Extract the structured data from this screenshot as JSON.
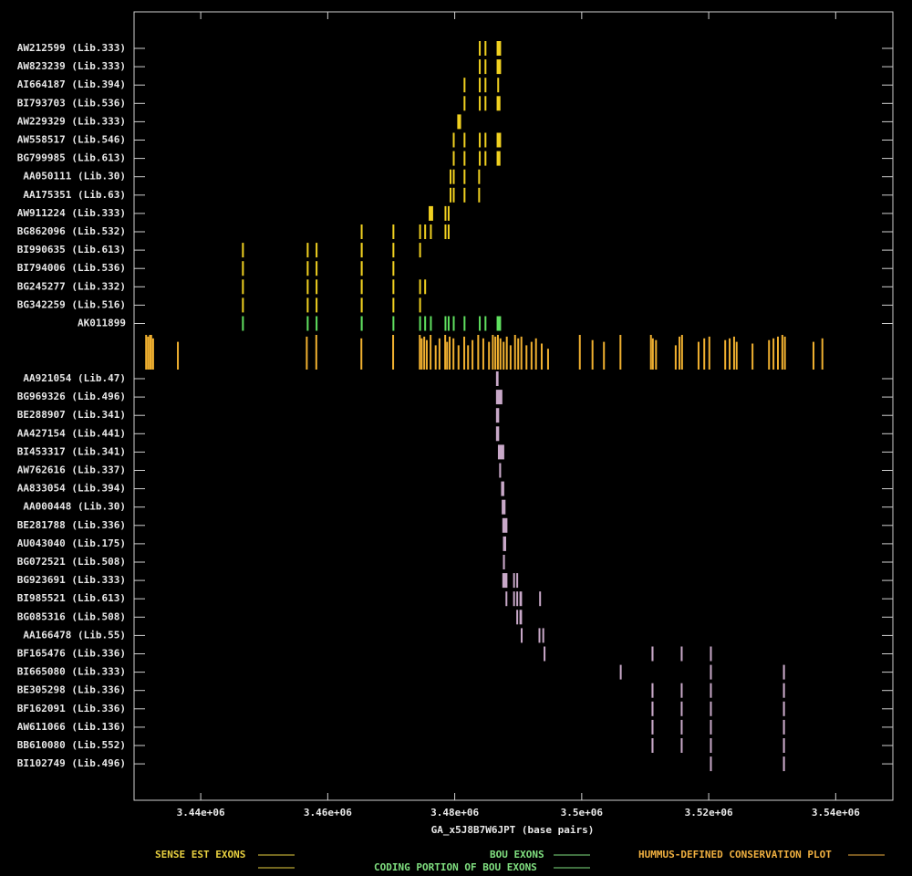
{
  "chart_data": {
    "type": "genome-track",
    "x_label": "GA_x5J8B7W6JPT (base pairs)",
    "xlim": [
      3429500,
      3549000
    ],
    "xticks": [
      {
        "value": 3440000,
        "label": "3.44e+06"
      },
      {
        "value": 3460000,
        "label": "3.46e+06"
      },
      {
        "value": 3480000,
        "label": "3.48e+06"
      },
      {
        "value": 3500000,
        "label": "3.5e+06"
      },
      {
        "value": 3520000,
        "label": "3.52e+06"
      },
      {
        "value": 3540000,
        "label": "3.54e+06"
      }
    ],
    "tracks": [
      {
        "name": "AW212599 (Lib.333)",
        "color": "#f0d020",
        "exons": [
          [
            3483800,
            3484000
          ],
          [
            3484700,
            3484900
          ],
          [
            3486600,
            3487300
          ]
        ]
      },
      {
        "name": "AW823239 (Lib.333)",
        "color": "#f0d020",
        "exons": [
          [
            3483800,
            3484000
          ],
          [
            3484700,
            3484900
          ],
          [
            3486600,
            3487300
          ]
        ]
      },
      {
        "name": "AI664187 (Lib.394)",
        "color": "#f0d020",
        "exons": [
          [
            3481400,
            3481600
          ],
          [
            3483800,
            3484000
          ],
          [
            3484700,
            3484900
          ],
          [
            3486700,
            3486900
          ]
        ]
      },
      {
        "name": "BI793703 (Lib.536)",
        "color": "#f0d020",
        "exons": [
          [
            3481400,
            3481600
          ],
          [
            3483800,
            3484000
          ],
          [
            3484700,
            3484900
          ],
          [
            3486600,
            3487200
          ]
        ]
      },
      {
        "name": "AW229329 (Lib.333)",
        "color": "#f0d020",
        "exons": [
          [
            3480400,
            3481000
          ]
        ]
      },
      {
        "name": "AW558517 (Lib.546)",
        "color": "#f0d020",
        "exons": [
          [
            3479700,
            3479900
          ],
          [
            3481400,
            3481600
          ],
          [
            3483800,
            3484000
          ],
          [
            3484700,
            3484900
          ],
          [
            3486600,
            3487300
          ]
        ]
      },
      {
        "name": "BG799985 (Lib.613)",
        "color": "#f0d020",
        "exons": [
          [
            3479700,
            3479900
          ],
          [
            3481400,
            3481600
          ],
          [
            3483800,
            3484000
          ],
          [
            3484700,
            3484900
          ],
          [
            3486600,
            3487200
          ]
        ]
      },
      {
        "name": "AA050111 (Lib.30)",
        "color": "#f0d020",
        "exons": [
          [
            3479200,
            3479300
          ],
          [
            3479700,
            3479800
          ],
          [
            3481400,
            3481600
          ],
          [
            3483700,
            3483800
          ]
        ]
      },
      {
        "name": "AA175351 (Lib.63)",
        "color": "#f0d020",
        "exons": [
          [
            3479200,
            3479300
          ],
          [
            3479700,
            3479800
          ],
          [
            3481400,
            3481600
          ],
          [
            3483700,
            3483900
          ]
        ]
      },
      {
        "name": "AW911224 (Lib.333)",
        "color": "#f0d020",
        "exons": [
          [
            3475900,
            3476600
          ],
          [
            3478400,
            3478600
          ],
          [
            3478900,
            3479100
          ]
        ]
      },
      {
        "name": "BG862096 (Lib.532)",
        "color": "#f0d020",
        "exons": [
          [
            3465200,
            3465400
          ],
          [
            3470200,
            3470400
          ],
          [
            3474400,
            3474600
          ],
          [
            3475200,
            3475400
          ],
          [
            3476100,
            3476300
          ],
          [
            3478400,
            3478600
          ],
          [
            3478900,
            3479100
          ]
        ]
      },
      {
        "name": "BI990635 (Lib.613)",
        "color": "#f0d020",
        "exons": [
          [
            3446500,
            3446700
          ],
          [
            3456700,
            3456900
          ],
          [
            3458100,
            3458300
          ],
          [
            3465200,
            3465500
          ],
          [
            3470200,
            3470400
          ],
          [
            3474400,
            3474600
          ]
        ]
      },
      {
        "name": "BI794006 (Lib.536)",
        "color": "#f0d020",
        "exons": [
          [
            3446500,
            3446700
          ],
          [
            3456700,
            3456900
          ],
          [
            3458100,
            3458300
          ],
          [
            3465200,
            3465500
          ],
          [
            3470200,
            3470400
          ]
        ]
      },
      {
        "name": "BG245277 (Lib.332)",
        "color": "#f0d020",
        "exons": [
          [
            3446500,
            3446700
          ],
          [
            3456700,
            3456900
          ],
          [
            3458100,
            3458300
          ],
          [
            3465200,
            3465500
          ],
          [
            3470200,
            3470400
          ],
          [
            3474400,
            3474600
          ],
          [
            3475200,
            3475400
          ]
        ]
      },
      {
        "name": "BG342259 (Lib.516)",
        "color": "#f0d020",
        "exons": [
          [
            3446500,
            3446700
          ],
          [
            3456700,
            3456900
          ],
          [
            3458100,
            3458300
          ],
          [
            3465200,
            3465500
          ],
          [
            3470200,
            3470400
          ],
          [
            3474400,
            3474600
          ]
        ]
      },
      {
        "name": "AK011899",
        "color": "#60e060",
        "exons": [
          [
            3446500,
            3446700
          ],
          [
            3456700,
            3456900
          ],
          [
            3458100,
            3458300
          ],
          [
            3465200,
            3465500
          ],
          [
            3470200,
            3470400
          ],
          [
            3474400,
            3474600
          ],
          [
            3475200,
            3475400
          ],
          [
            3476100,
            3476300
          ],
          [
            3478400,
            3478600
          ],
          [
            3478900,
            3479100
          ],
          [
            3479700,
            3479900
          ],
          [
            3481400,
            3481600
          ],
          [
            3483800,
            3484000
          ],
          [
            3484700,
            3484900
          ],
          [
            3486600,
            3487300
          ]
        ]
      },
      {
        "name": "AA921054 (Lib.47)",
        "color": "#c8a8c8",
        "exons": [
          [
            3486500,
            3486900
          ]
        ]
      },
      {
        "name": "BG969326 (Lib.496)",
        "color": "#c8a8c8",
        "exons": [
          [
            3486500,
            3487500
          ]
        ]
      },
      {
        "name": "BE288907 (Lib.341)",
        "color": "#c8a8c8",
        "exons": [
          [
            3486500,
            3487000
          ]
        ]
      },
      {
        "name": "AA427154 (Lib.441)",
        "color": "#c8a8c8",
        "exons": [
          [
            3486500,
            3487000
          ]
        ]
      },
      {
        "name": "BI453317 (Lib.341)",
        "color": "#c8a8c8",
        "exons": [
          [
            3486800,
            3487800
          ]
        ]
      },
      {
        "name": "AW762616 (Lib.337)",
        "color": "#c8a8c8",
        "exons": [
          [
            3487000,
            3487300
          ]
        ]
      },
      {
        "name": "AA833054 (Lib.394)",
        "color": "#c8a8c8",
        "exons": [
          [
            3487300,
            3487800
          ]
        ]
      },
      {
        "name": "AA000448 (Lib.30)",
        "color": "#c8a8c8",
        "exons": [
          [
            3487400,
            3488000
          ]
        ]
      },
      {
        "name": "BE281788 (Lib.336)",
        "color": "#c8a8c8",
        "exons": [
          [
            3487500,
            3488300
          ]
        ]
      },
      {
        "name": "AU043040 (Lib.175)",
        "color": "#c8a8c8",
        "exons": [
          [
            3487600,
            3488100
          ]
        ]
      },
      {
        "name": "BG072521 (Lib.508)",
        "color": "#c8a8c8",
        "exons": [
          [
            3487600,
            3487900
          ]
        ]
      },
      {
        "name": "BG923691 (Lib.333)",
        "color": "#c8a8c8",
        "exons": [
          [
            3487500,
            3488300
          ],
          [
            3489200,
            3489400
          ],
          [
            3489700,
            3489900
          ]
        ]
      },
      {
        "name": "BI985521 (Lib.613)",
        "color": "#c8a8c8",
        "exons": [
          [
            3488000,
            3488200
          ],
          [
            3489200,
            3489400
          ],
          [
            3489700,
            3489900
          ],
          [
            3490200,
            3490600
          ],
          [
            3493300,
            3493500
          ]
        ]
      },
      {
        "name": "BG085316 (Lib.508)",
        "color": "#c8a8c8",
        "exons": [
          [
            3489700,
            3489900
          ],
          [
            3490200,
            3490600
          ]
        ]
      },
      {
        "name": "AA166478 (Lib.55)",
        "color": "#c8a8c8",
        "exons": [
          [
            3490400,
            3490600
          ],
          [
            3493200,
            3493400
          ],
          [
            3493800,
            3494000
          ]
        ]
      },
      {
        "name": "BF165476 (Lib.336)",
        "color": "#c8a8c8",
        "exons": [
          [
            3494000,
            3494200
          ],
          [
            3511000,
            3511300
          ],
          [
            3515600,
            3515800
          ],
          [
            3520200,
            3520400
          ]
        ]
      },
      {
        "name": "BI665080 (Lib.333)",
        "color": "#c8a8c8",
        "exons": [
          [
            3506000,
            3506200
          ],
          [
            3520200,
            3520400
          ],
          [
            3531700,
            3532000
          ]
        ]
      },
      {
        "name": "BE305298 (Lib.336)",
        "color": "#c8a8c8",
        "exons": [
          [
            3511000,
            3511300
          ],
          [
            3515600,
            3515800
          ],
          [
            3520200,
            3520400
          ],
          [
            3531700,
            3532000
          ]
        ]
      },
      {
        "name": "BF162091 (Lib.336)",
        "color": "#c8a8c8",
        "exons": [
          [
            3511000,
            3511300
          ],
          [
            3515600,
            3515800
          ],
          [
            3520200,
            3520400
          ],
          [
            3531700,
            3532000
          ]
        ]
      },
      {
        "name": "AW611066 (Lib.136)",
        "color": "#c8a8c8",
        "exons": [
          [
            3511000,
            3511300
          ],
          [
            3515600,
            3515800
          ],
          [
            3520200,
            3520400
          ],
          [
            3531700,
            3532000
          ]
        ]
      },
      {
        "name": "BB610080 (Lib.552)",
        "color": "#c8a8c8",
        "exons": [
          [
            3511000,
            3511300
          ],
          [
            3515600,
            3515800
          ],
          [
            3520200,
            3520400
          ],
          [
            3531700,
            3532000
          ]
        ]
      },
      {
        "name": "BI102749 (Lib.496)",
        "color": "#c8a8c8",
        "exons": [
          [
            3520200,
            3520400
          ],
          [
            3531700,
            3532000
          ]
        ]
      }
    ],
    "conservation": {
      "color": "#f0b030",
      "ylim": [
        0,
        100
      ],
      "x": [
        3431400,
        3431700,
        3432000,
        3432200,
        3432500,
        3436400,
        3456700,
        3458200,
        3465300,
        3470300,
        3474500,
        3474800,
        3475200,
        3475600,
        3476200,
        3477000,
        3477600,
        3478500,
        3478800,
        3479200,
        3479800,
        3480600,
        3481500,
        3482100,
        3482800,
        3483700,
        3484500,
        3485400,
        3486000,
        3486400,
        3486800,
        3487200,
        3487700,
        3488200,
        3488800,
        3489500,
        3490000,
        3490500,
        3491300,
        3492100,
        3492800,
        3493700,
        3494700,
        3499700,
        3501700,
        3503500,
        3506100,
        3510900,
        3511200,
        3511700,
        3514800,
        3515400,
        3515800,
        3518400,
        3519300,
        3520100,
        3522600,
        3523300,
        3524000,
        3524400,
        3526900,
        3529500,
        3530200,
        3530900,
        3531600,
        3532000,
        3536500,
        3537900
      ],
      "values": [
        100,
        95,
        100,
        100,
        90,
        80,
        95,
        100,
        90,
        100,
        100,
        90,
        95,
        85,
        100,
        70,
        90,
        100,
        80,
        95,
        90,
        70,
        95,
        70,
        85,
        100,
        90,
        80,
        100,
        95,
        100,
        90,
        80,
        95,
        70,
        100,
        90,
        95,
        70,
        80,
        90,
        75,
        60,
        100,
        85,
        80,
        100,
        100,
        90,
        85,
        70,
        95,
        100,
        80,
        90,
        95,
        85,
        90,
        95,
        80,
        75,
        85,
        90,
        95,
        100,
        95,
        80,
        90
      ]
    },
    "legend": [
      {
        "label": "SENSE EST EXONS",
        "color": "#e8d040"
      },
      {
        "label": "BOU EXONS",
        "color": "#80e080"
      },
      {
        "label": "CODING PORTION OF BOU EXONS",
        "color": "#80e080"
      },
      {
        "label": "HUMMUS-DEFINED CONSERVATION PLOT",
        "color": "#f0b040"
      }
    ]
  }
}
